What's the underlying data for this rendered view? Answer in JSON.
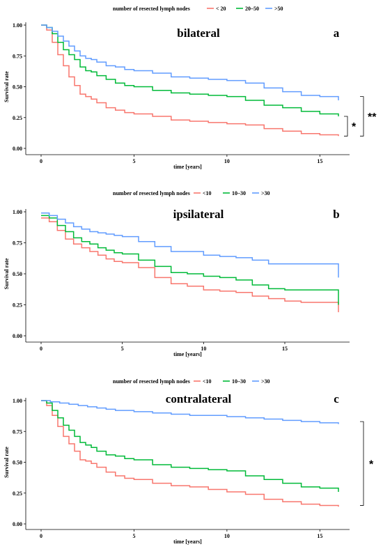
{
  "colors": {
    "low": "#f8766d",
    "mid": "#00ba38",
    "high": "#619cff"
  },
  "chart_data": [
    {
      "type": "line",
      "step": true,
      "title": "bilateral",
      "panel_letter": "a",
      "legend_title": "number of resected lymph nodes",
      "legend_position": "top",
      "xlabel": "time [years]",
      "ylabel": "Survival rate",
      "xlim": [
        0,
        16
      ],
      "ylim": [
        0,
        1
      ],
      "xticks": [
        0,
        5,
        10,
        15
      ],
      "yticks": [
        "0.00",
        "0.25",
        "0.50",
        "0.75",
        "1.00"
      ],
      "grid": false,
      "series": [
        {
          "name": "< 20",
          "color_key": "low",
          "x": [
            0,
            0.3,
            0.6,
            0.9,
            1.2,
            1.5,
            1.8,
            2.1,
            2.4,
            2.7,
            3.0,
            3.5,
            4.0,
            4.5,
            5.0,
            6.0,
            7.0,
            8.0,
            9.0,
            10.0,
            11.0,
            12.0,
            13.0,
            14.0,
            15.0,
            16.0
          ],
          "y": [
            1.0,
            0.96,
            0.86,
            0.76,
            0.67,
            0.58,
            0.51,
            0.44,
            0.42,
            0.4,
            0.37,
            0.33,
            0.31,
            0.29,
            0.28,
            0.26,
            0.23,
            0.22,
            0.21,
            0.2,
            0.19,
            0.16,
            0.14,
            0.12,
            0.11,
            0.1
          ]
        },
        {
          "name": "20–50",
          "color_key": "mid",
          "x": [
            0,
            0.3,
            0.6,
            0.9,
            1.2,
            1.5,
            1.8,
            2.1,
            2.4,
            2.7,
            3.0,
            3.5,
            4.0,
            4.5,
            5.0,
            6.0,
            7.0,
            8.0,
            9.0,
            10.0,
            11.0,
            12.0,
            13.0,
            14.0,
            15.0,
            16.0
          ],
          "y": [
            1.0,
            0.98,
            0.93,
            0.86,
            0.8,
            0.76,
            0.72,
            0.66,
            0.63,
            0.62,
            0.59,
            0.56,
            0.53,
            0.51,
            0.5,
            0.47,
            0.45,
            0.44,
            0.43,
            0.42,
            0.39,
            0.35,
            0.33,
            0.3,
            0.28,
            0.26
          ]
        },
        {
          "name": ">50",
          "color_key": "high",
          "x": [
            0,
            0.3,
            0.6,
            0.9,
            1.2,
            1.5,
            1.8,
            2.1,
            2.4,
            2.7,
            3.0,
            3.5,
            4.0,
            4.5,
            5.0,
            6.0,
            7.0,
            8.0,
            9.0,
            10.0,
            11.0,
            12.0,
            13.0,
            14.0,
            15.0,
            16.0
          ],
          "y": [
            1.0,
            0.98,
            0.95,
            0.91,
            0.87,
            0.83,
            0.79,
            0.75,
            0.73,
            0.72,
            0.7,
            0.67,
            0.66,
            0.64,
            0.63,
            0.61,
            0.58,
            0.57,
            0.56,
            0.55,
            0.53,
            0.49,
            0.46,
            0.43,
            0.42,
            0.39
          ]
        }
      ],
      "annotations": [
        "*",
        "**"
      ]
    },
    {
      "type": "line",
      "step": true,
      "title": "ipsilateral",
      "panel_letter": "b",
      "legend_title": "number of resected lymph nodes",
      "legend_position": "top",
      "xlabel": "time [years]",
      "ylabel": "Survival rate",
      "xlim": [
        0,
        18.3
      ],
      "ylim": [
        0,
        1
      ],
      "xticks": [
        0,
        5,
        10,
        15
      ],
      "yticks": [
        "0.00",
        "0.25",
        "0.50",
        "0.75",
        "1.00"
      ],
      "grid": false,
      "series": [
        {
          "name": "<10",
          "color_key": "low",
          "x": [
            0,
            0.5,
            1.0,
            1.5,
            2.0,
            2.5,
            3.0,
            3.5,
            4.0,
            4.5,
            5.0,
            6.0,
            7.0,
            8.0,
            9.0,
            10.0,
            11.0,
            12.0,
            13.0,
            14.0,
            15.0,
            16.0,
            17.0,
            18.3
          ],
          "y": [
            0.95,
            0.92,
            0.85,
            0.78,
            0.74,
            0.71,
            0.68,
            0.65,
            0.62,
            0.6,
            0.59,
            0.55,
            0.47,
            0.42,
            0.4,
            0.37,
            0.36,
            0.35,
            0.32,
            0.3,
            0.28,
            0.27,
            0.27,
            0.19
          ]
        },
        {
          "name": "10–30",
          "color_key": "mid",
          "x": [
            0,
            0.5,
            1.0,
            1.5,
            2.0,
            2.5,
            3.0,
            3.5,
            4.0,
            4.5,
            5.0,
            6.0,
            7.0,
            8.0,
            9.0,
            10.0,
            11.0,
            12.0,
            13.0,
            14.0,
            15.0,
            16.0,
            17.0,
            18.3
          ],
          "y": [
            0.97,
            0.95,
            0.89,
            0.84,
            0.79,
            0.76,
            0.74,
            0.71,
            0.69,
            0.67,
            0.66,
            0.61,
            0.56,
            0.51,
            0.5,
            0.48,
            0.47,
            0.45,
            0.41,
            0.38,
            0.37,
            0.37,
            0.37,
            0.25
          ]
        },
        {
          "name": ">30",
          "color_key": "high",
          "x": [
            0,
            0.5,
            1.0,
            1.5,
            2.0,
            2.5,
            3.0,
            3.5,
            4.0,
            4.5,
            5.0,
            6.0,
            7.0,
            8.0,
            9.0,
            10.0,
            11.0,
            12.0,
            13.0,
            14.0,
            15.0,
            16.0,
            17.0,
            18.3
          ],
          "y": [
            0.99,
            0.97,
            0.94,
            0.91,
            0.88,
            0.86,
            0.84,
            0.83,
            0.82,
            0.81,
            0.8,
            0.76,
            0.72,
            0.68,
            0.68,
            0.65,
            0.64,
            0.63,
            0.61,
            0.58,
            0.58,
            0.58,
            0.58,
            0.47
          ]
        }
      ],
      "annotations": []
    },
    {
      "type": "line",
      "step": true,
      "title": "contralateral",
      "panel_letter": "c",
      "legend_title": "number of resected lymph nodes",
      "legend_position": "top",
      "xlabel": "time [years]",
      "ylabel": "Survival rate",
      "xlim": [
        0,
        16
      ],
      "ylim": [
        0,
        1
      ],
      "xticks": [
        0,
        5,
        10,
        15
      ],
      "yticks": [
        "0.00",
        "0.25",
        "0.50",
        "0.75",
        "1.00"
      ],
      "grid": false,
      "series": [
        {
          "name": "<10",
          "color_key": "low",
          "x": [
            0,
            0.3,
            0.6,
            0.9,
            1.2,
            1.5,
            1.8,
            2.1,
            2.4,
            2.7,
            3.0,
            3.5,
            4.0,
            4.5,
            5.0,
            6.0,
            7.0,
            8.0,
            9.0,
            10.0,
            11.0,
            12.0,
            13.0,
            14.0,
            15.0,
            16.0
          ],
          "y": [
            1.0,
            0.96,
            0.88,
            0.79,
            0.71,
            0.65,
            0.59,
            0.52,
            0.51,
            0.49,
            0.46,
            0.42,
            0.39,
            0.37,
            0.36,
            0.33,
            0.31,
            0.3,
            0.28,
            0.26,
            0.24,
            0.2,
            0.18,
            0.16,
            0.15,
            0.14
          ]
        },
        {
          "name": "10–30",
          "color_key": "mid",
          "x": [
            0,
            0.3,
            0.6,
            0.9,
            1.2,
            1.5,
            1.8,
            2.1,
            2.4,
            2.7,
            3.0,
            3.5,
            4.0,
            4.5,
            5.0,
            6.0,
            7.0,
            8.0,
            9.0,
            10.0,
            11.0,
            12.0,
            13.0,
            14.0,
            15.0,
            16.0
          ],
          "y": [
            1.0,
            0.98,
            0.92,
            0.86,
            0.8,
            0.76,
            0.71,
            0.66,
            0.64,
            0.62,
            0.59,
            0.56,
            0.55,
            0.53,
            0.52,
            0.48,
            0.46,
            0.45,
            0.44,
            0.43,
            0.39,
            0.36,
            0.33,
            0.3,
            0.29,
            0.26
          ]
        },
        {
          "name": ">30",
          "color_key": "high",
          "x": [
            0,
            0.5,
            1.0,
            1.5,
            2.0,
            2.5,
            3.0,
            3.5,
            4.0,
            5.0,
            6.0,
            7.0,
            8.0,
            9.0,
            10.0,
            11.0,
            12.0,
            13.0,
            14.0,
            15.0,
            16.0
          ],
          "y": [
            1.0,
            0.99,
            0.98,
            0.97,
            0.96,
            0.95,
            0.94,
            0.93,
            0.92,
            0.91,
            0.9,
            0.89,
            0.88,
            0.88,
            0.87,
            0.86,
            0.85,
            0.84,
            0.83,
            0.82,
            0.81
          ]
        }
      ],
      "annotations": [
        "*"
      ]
    }
  ]
}
